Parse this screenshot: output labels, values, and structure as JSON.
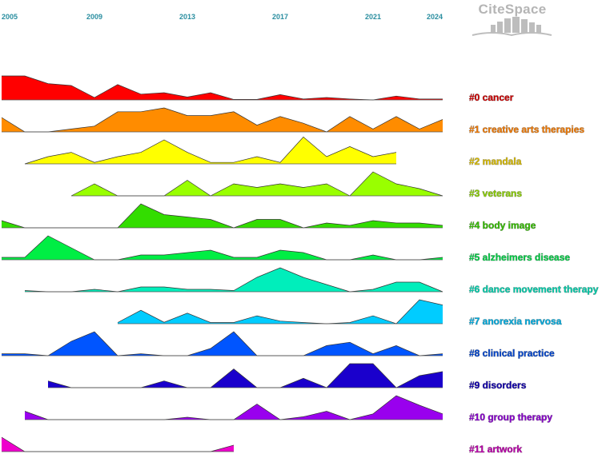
{
  "logo": {
    "text": "CiteSpace",
    "icon": "citespace-logo-icon"
  },
  "chart_data": {
    "type": "area",
    "title": "",
    "timeline": "cluster timeline view",
    "x_range": [
      2005,
      2024
    ],
    "year_ticks": [
      2005,
      2009,
      2013,
      2017,
      2021,
      2024
    ],
    "years": [
      2005,
      2006,
      2007,
      2008,
      2009,
      2010,
      2011,
      2012,
      2013,
      2014,
      2015,
      2016,
      2017,
      2018,
      2019,
      2020,
      2021,
      2022,
      2023,
      2024
    ],
    "series": [
      {
        "name": "#0 cancer",
        "color": "#ff0000",
        "label_color": "#cc0000",
        "start": 2005,
        "values": [
          1.0,
          1.0,
          0.68,
          0.6,
          0.1,
          0.64,
          0.24,
          0.3,
          0.12,
          0.3,
          0.02,
          0.02,
          0.22,
          0.04,
          0.1,
          0.04,
          0.0,
          0.16,
          0.04,
          0.04
        ]
      },
      {
        "name": "#1 creative arts therapies",
        "color": "#ff8c00",
        "label_color": "#ee7700",
        "start": 2005,
        "values": [
          0.6,
          0.0,
          0.0,
          0.12,
          0.24,
          0.84,
          0.84,
          1.0,
          0.68,
          0.68,
          0.84,
          0.28,
          0.64,
          0.36,
          0.0,
          0.64,
          0.12,
          0.64,
          0.12,
          0.52
        ]
      },
      {
        "name": "#2 mandala",
        "color": "#ffff00",
        "label_color": "#d4b800",
        "start": 2006,
        "values": [
          null,
          0.0,
          0.3,
          0.48,
          0.06,
          0.3,
          0.48,
          1.0,
          0.48,
          0.06,
          0.06,
          0.3,
          0.06,
          1.12,
          0.3,
          0.72,
          0.3,
          0.48,
          null,
          null
        ]
      },
      {
        "name": "#3 veterans",
        "color": "#99ff00",
        "label_color": "#88cc00",
        "start": 2008,
        "values": [
          null,
          null,
          null,
          0.0,
          0.5,
          0.0,
          0.0,
          0.0,
          0.65,
          0.0,
          0.5,
          0.35,
          0.5,
          0.35,
          0.5,
          0.0,
          1.0,
          0.5,
          0.3,
          0.0
        ]
      },
      {
        "name": "#4 body image",
        "color": "#33dd00",
        "label_color": "#33bb00",
        "start": 2005,
        "values": [
          0.3,
          0.0,
          0.0,
          0.0,
          0.0,
          0.0,
          1.0,
          0.55,
          0.45,
          0.35,
          0.0,
          0.35,
          0.35,
          0.0,
          0.2,
          0.1,
          0.3,
          0.2,
          0.2,
          0.1
        ]
      },
      {
        "name": "#5 alzheimers disease",
        "color": "#00ee44",
        "label_color": "#00cc44",
        "start": 2005,
        "values": [
          0.1,
          0.1,
          1.0,
          0.5,
          0.0,
          0.0,
          0.2,
          0.2,
          0.3,
          0.4,
          0.1,
          0.1,
          0.4,
          0.3,
          0.0,
          0.0,
          0.2,
          0.0,
          0.0,
          0.1
        ]
      },
      {
        "name": "#6 dance movement therapy",
        "color": "#00eebb",
        "label_color": "#00ccaa",
        "start": 2006,
        "values": [
          null,
          0.05,
          0.0,
          0.0,
          0.1,
          0.0,
          0.2,
          0.2,
          0.1,
          0.1,
          0.05,
          0.6,
          1.0,
          0.6,
          0.3,
          0.0,
          0.1,
          0.4,
          0.4,
          0.0
        ]
      },
      {
        "name": "#7 anorexia nervosa",
        "color": "#00ccff",
        "label_color": "#00aadd",
        "start": 2010,
        "values": [
          null,
          null,
          null,
          null,
          null,
          0.05,
          0.56,
          0.06,
          0.44,
          0.05,
          0.05,
          0.33,
          0.11,
          0.05,
          0.0,
          0.05,
          0.33,
          0.0,
          1.0,
          0.78
        ]
      },
      {
        "name": "#8 clinical practice",
        "color": "#0055ff",
        "label_color": "#0044cc",
        "start": 2005,
        "values": [
          0.08,
          0.08,
          0.0,
          0.6,
          1.0,
          0.0,
          0.08,
          0.0,
          0.0,
          0.3,
          1.0,
          0.0,
          0.0,
          0.0,
          0.42,
          0.56,
          0.08,
          0.42,
          0.0,
          0.08
        ]
      },
      {
        "name": "#9 disorders",
        "color": "#1a00cc",
        "label_color": "#1100aa",
        "start": 2007,
        "values": [
          null,
          null,
          0.28,
          0.0,
          0.0,
          0.0,
          0.0,
          0.28,
          0.0,
          0.0,
          0.78,
          0.0,
          0.0,
          0.39,
          0.0,
          1.0,
          1.0,
          0.0,
          0.5,
          0.67
        ]
      },
      {
        "name": "#10 group therapy",
        "color": "#9900ee",
        "label_color": "#8800cc",
        "start": 2006,
        "values": [
          null,
          0.35,
          0.0,
          0.0,
          0.0,
          0.0,
          0.0,
          0.0,
          0.1,
          0.0,
          0.0,
          0.65,
          0.0,
          0.12,
          0.35,
          0.0,
          0.24,
          1.0,
          0.6,
          0.24
        ]
      },
      {
        "name": "#11 artwork",
        "color": "#ee00cc",
        "label_color": "#bb00aa",
        "start": 2005,
        "values": [
          0.6,
          0.0,
          0.0,
          0.0,
          0.0,
          0.0,
          0.0,
          0.0,
          0.0,
          0.0,
          0.27,
          null,
          null,
          null,
          null,
          null,
          null,
          null,
          null,
          null
        ]
      }
    ]
  }
}
